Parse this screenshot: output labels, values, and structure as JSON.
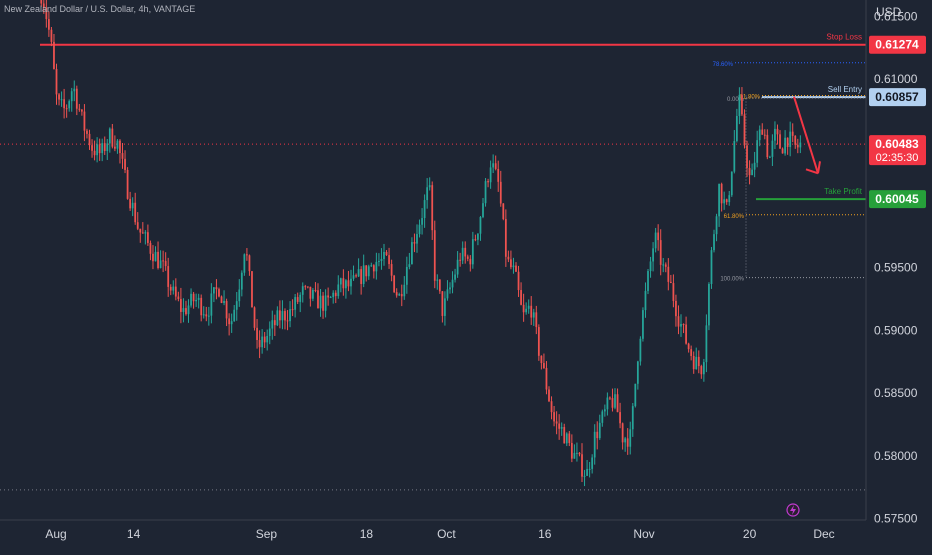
{
  "header": {
    "symbol_title": "New Zealand Dollar / U.S. Dollar, 4h, VANTAGE",
    "currency": "USD"
  },
  "chart_data": {
    "type": "candlestick",
    "title": "New Zealand Dollar / U.S. Dollar, 4h, VANTAGE",
    "xlabel": "",
    "ylabel": "",
    "grid": false,
    "ylim": [
      0.5749,
      0.6163
    ],
    "y_ticks": [
      {
        "value": 0.615,
        "label": "0.61500"
      },
      {
        "value": 0.61,
        "label": "0.61000"
      },
      {
        "value": 0.595,
        "label": "0.59500"
      },
      {
        "value": 0.59,
        "label": "0.59000"
      },
      {
        "value": 0.585,
        "label": "0.58500"
      },
      {
        "value": 0.58,
        "label": "0.58000"
      },
      {
        "value": 0.575,
        "label": "0.57500"
      }
    ],
    "x_ticks": [
      "Aug",
      "14",
      "Sep",
      "18",
      "Oct",
      "16",
      "Nov",
      "20",
      "Dec"
    ],
    "x_tick_fraction": [
      0.0,
      0.097,
      0.263,
      0.388,
      0.488,
      0.611,
      0.735,
      0.867,
      0.96
    ],
    "price_path": {
      "fraction": [
        0.0,
        0.007,
        0.015,
        0.023,
        0.033,
        0.043,
        0.055,
        0.067,
        0.078,
        0.088,
        0.098,
        0.11,
        0.125,
        0.14,
        0.155,
        0.167,
        0.18,
        0.195,
        0.21,
        0.225,
        0.24,
        0.25,
        0.258,
        0.265,
        0.273,
        0.285,
        0.3,
        0.315,
        0.33,
        0.345,
        0.36,
        0.375,
        0.39,
        0.405,
        0.42,
        0.435,
        0.45,
        0.465,
        0.48,
        0.488,
        0.495,
        0.505,
        0.515,
        0.527,
        0.538,
        0.55,
        0.565,
        0.575,
        0.585,
        0.595,
        0.605,
        0.615,
        0.625,
        0.635,
        0.645,
        0.655,
        0.665,
        0.675,
        0.685,
        0.695,
        0.705,
        0.715,
        0.722,
        0.73,
        0.74,
        0.75,
        0.76,
        0.77,
        0.78,
        0.79,
        0.8,
        0.81,
        0.82,
        0.83,
        0.84,
        0.85,
        0.86,
        0.867,
        0.875,
        0.883,
        0.89,
        0.897,
        0.905,
        0.913,
        0.92,
        0.928,
        0.935,
        0.942,
        0.947,
        0.952
      ],
      "price": [
        0.6175,
        0.616,
        0.613,
        0.608,
        0.6075,
        0.6095,
        0.6065,
        0.6045,
        0.604,
        0.6055,
        0.605,
        0.6015,
        0.598,
        0.5965,
        0.595,
        0.593,
        0.5915,
        0.5925,
        0.5915,
        0.5935,
        0.5905,
        0.5935,
        0.597,
        0.593,
        0.5885,
        0.5895,
        0.591,
        0.5915,
        0.593,
        0.5925,
        0.592,
        0.5935,
        0.5935,
        0.5945,
        0.5955,
        0.5955,
        0.5925,
        0.5965,
        0.5995,
        0.6015,
        0.5945,
        0.5915,
        0.5935,
        0.596,
        0.5955,
        0.5985,
        0.6035,
        0.6015,
        0.5955,
        0.5945,
        0.591,
        0.592,
        0.5885,
        0.5855,
        0.5825,
        0.582,
        0.5805,
        0.5795,
        0.5785,
        0.5815,
        0.583,
        0.5845,
        0.584,
        0.5815,
        0.5815,
        0.589,
        0.5935,
        0.5975,
        0.595,
        0.5935,
        0.591,
        0.589,
        0.5875,
        0.587,
        0.5955,
        0.6015,
        0.5995,
        0.6035,
        0.6085,
        0.6045,
        0.6015,
        0.6045,
        0.6065,
        0.6035,
        0.6055,
        0.6045,
        0.6055,
        0.6048,
        0.6045,
        0.6048
      ]
    },
    "horizontal_lines": [
      {
        "name": "Stop Loss",
        "value": 0.61274,
        "label": "0.61274",
        "color": "#f23645",
        "label_text_color": "#ffffff",
        "style": "solid"
      },
      {
        "name": "Sell Entry",
        "value": 0.60857,
        "label": "0.60857",
        "color": "#b2d0f0",
        "label_text_color": "#131722",
        "style": "solid"
      },
      {
        "name": "Current price",
        "value": 0.60483,
        "label": "0.60483",
        "countdown": "02:35:30",
        "color": "#f23645",
        "label_text_color": "#ffffff",
        "style": "dotted"
      },
      {
        "name": "Take Profit",
        "value": 0.60045,
        "label": "0.60045",
        "color": "#26a03a",
        "label_text_color": "#ffffff",
        "style": "solid"
      }
    ],
    "fibonacci": {
      "levels": [
        {
          "label": "0.00%",
          "value": 0.6085,
          "color": "#9598a1"
        },
        {
          "label": "61.80%",
          "value": 0.6087,
          "color": "#f0a020"
        },
        {
          "label": "78.60%",
          "value": 0.6113,
          "color": "#2962ff"
        },
        {
          "label": "61.80%",
          "value": 0.5992,
          "color": "#f0a020"
        },
        {
          "label": "100.00%",
          "value": 0.5942,
          "color": "#9598a1"
        }
      ]
    },
    "low_dotted_level": 0.5773,
    "arrow": {
      "from": 0.6086,
      "to": 0.6025,
      "color": "#f23645"
    },
    "colors": {
      "background": "#1e2533",
      "bull": "#26a69a",
      "bear": "#ef5350",
      "axis_text": "#d1d4dc",
      "axis_line": "#3a3f4b"
    }
  }
}
